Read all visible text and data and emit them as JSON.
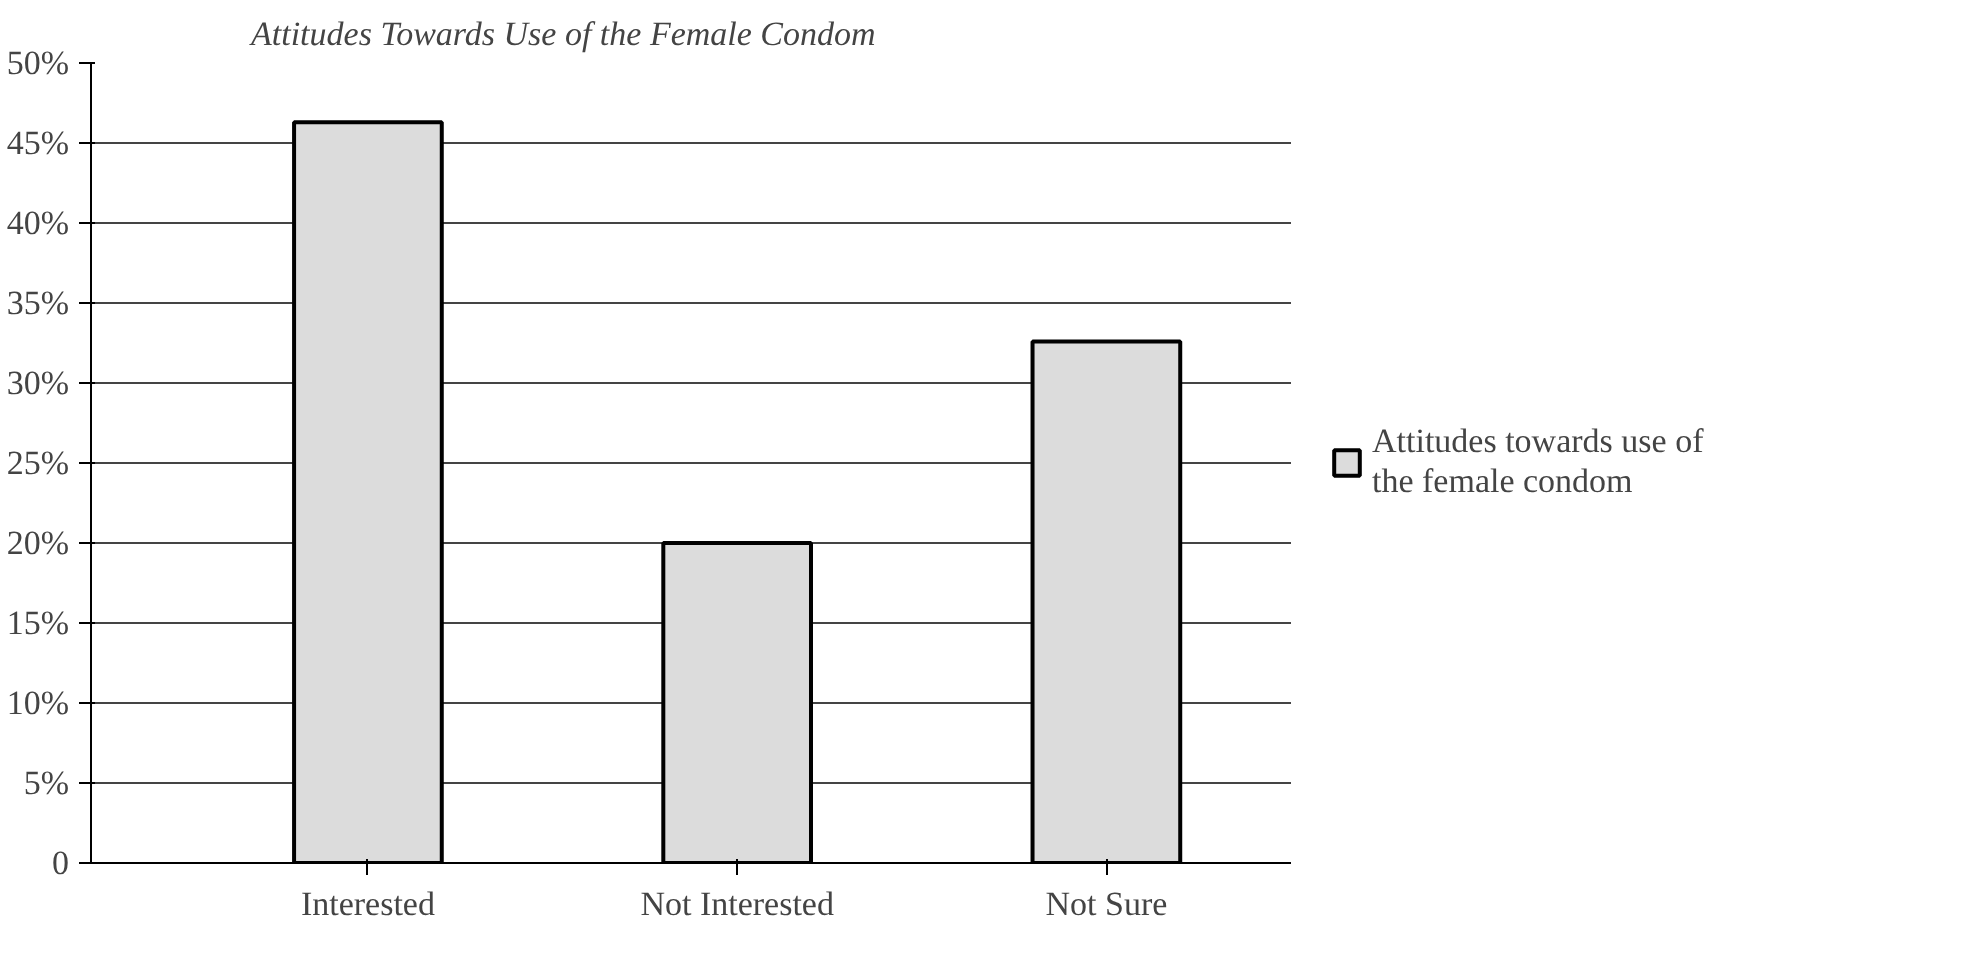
{
  "chart_data": {
    "type": "bar",
    "title": "Attitudes Towards Use of the Female Condom",
    "categories": [
      "Interested",
      "Not Interested",
      "Not Sure"
    ],
    "series": [
      {
        "name": "Attitudes towards use of the female condom",
        "color": "#dcdcdc",
        "values": [
          46.3,
          20,
          32.6
        ]
      }
    ],
    "ylim": [
      0,
      50
    ],
    "yticks": [
      {
        "value": 0,
        "label": "0"
      },
      {
        "value": 5,
        "label": "5%"
      },
      {
        "value": 10,
        "label": "10%"
      },
      {
        "value": 15,
        "label": "15%"
      },
      {
        "value": 20,
        "label": "20%"
      },
      {
        "value": 25,
        "label": "25%"
      },
      {
        "value": 30,
        "label": "30%"
      },
      {
        "value": 35,
        "label": "35%"
      },
      {
        "value": 40,
        "label": "40%"
      },
      {
        "value": 45,
        "label": "45%"
      },
      {
        "value": 50,
        "label": "50%"
      }
    ],
    "grid": "y",
    "legend": "right"
  }
}
